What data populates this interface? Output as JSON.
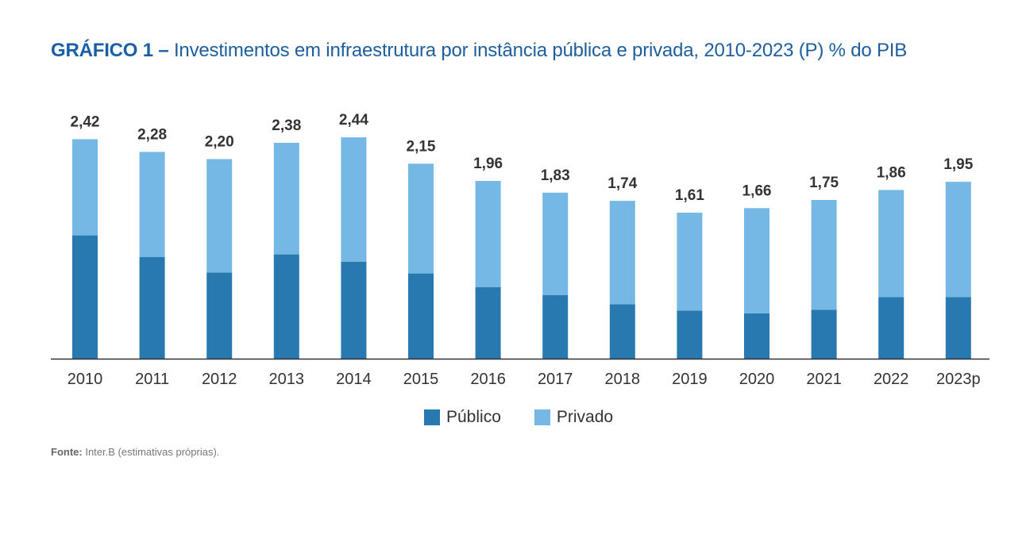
{
  "title": {
    "label": "GRÁFICO 1 –",
    "text": "Investimentos em infraestrutura por instância pública e privada, 2010-2023 (P) % do PIB"
  },
  "source": {
    "label": "Fonte:",
    "text": "Inter.B (estimativas próprias)."
  },
  "colors": {
    "publico": "#2779b0",
    "privado": "#75b8e5",
    "axis": "#333333",
    "data_label": "#333333"
  },
  "chart_data": {
    "type": "bar",
    "stacked": true,
    "title": "Investimentos em infraestrutura por instância pública e privada, 2010-2023 (P) % do PIB",
    "xlabel": "",
    "ylabel": "% do PIB",
    "ylim": [
      0,
      2.6
    ],
    "grid": false,
    "legend_position": "bottom-center",
    "categories": [
      "2010",
      "2011",
      "2012",
      "2013",
      "2014",
      "2015",
      "2016",
      "2017",
      "2018",
      "2019",
      "2020",
      "2021",
      "2022",
      "2023p"
    ],
    "totals": [
      2.42,
      2.28,
      2.2,
      2.38,
      2.44,
      2.15,
      1.96,
      1.83,
      1.74,
      1.61,
      1.66,
      1.75,
      1.86,
      1.95
    ],
    "total_labels": [
      "2,42",
      "2,28",
      "2,20",
      "2,38",
      "2,44",
      "2,15",
      "1,96",
      "1,83",
      "1,74",
      "1,61",
      "1,66",
      "1,75",
      "1,86",
      "1,95"
    ],
    "series": [
      {
        "name": "Público",
        "color_key": "publico",
        "values": [
          1.36,
          1.12,
          0.95,
          1.15,
          1.07,
          0.94,
          0.79,
          0.7,
          0.6,
          0.53,
          0.5,
          0.54,
          0.68,
          0.68
        ]
      },
      {
        "name": "Privado",
        "color_key": "privado",
        "values": [
          1.06,
          1.16,
          1.25,
          1.23,
          1.37,
          1.21,
          1.17,
          1.13,
          1.14,
          1.08,
          1.16,
          1.21,
          1.18,
          1.27
        ]
      }
    ]
  }
}
